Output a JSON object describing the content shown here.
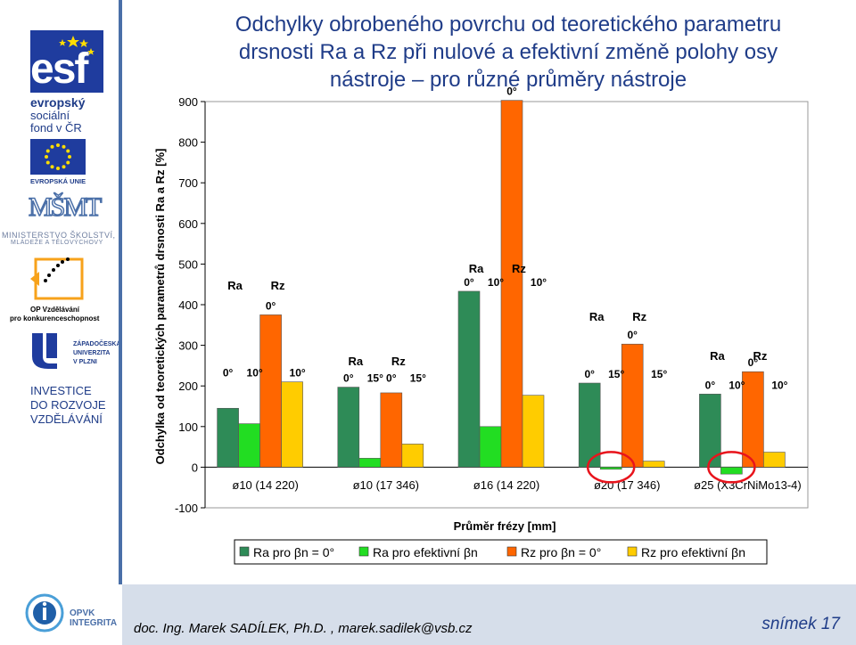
{
  "title_lines": [
    "Odchylky obrobeného povrchu od teoretického parametru",
    "drsnosti Ra a Rz při nulové a efektivní změně polohy osy",
    "nástroje – pro různé průměry nástroje"
  ],
  "sidebar": {
    "esf_logo_text": "esf",
    "esf_lines": [
      "evropský",
      "sociální",
      "fond v ČR"
    ],
    "eu_label": "EVROPSKÁ UNIE",
    "msmt_logo_text": "MŠMT",
    "msmt_lines": [
      "MINISTERSTVO ŠKOLSTVÍ,",
      "MLÁDEŽE A TĚLOVÝCHOVY"
    ],
    "op_lines": [
      "OP Vzdělávání",
      "pro konkurenceschopnost"
    ],
    "zcu_lines": [
      "ZÁPADOČESKÁ",
      "UNIVERZITA",
      "V PLZNI"
    ],
    "investice_lines": [
      "INVESTICE",
      "DO ROZVOJE",
      "VZDĚLÁVÁNÍ"
    ],
    "opvk_lines": [
      "OPVK",
      "INTEGRITA"
    ],
    "colors": {
      "brand_blue": "#1f3c88",
      "eu_blue": "#1f3c9e",
      "eu_star": "#ffdd00",
      "op_orange": "#f7a21b"
    }
  },
  "footer": {
    "author": "doc. Ing. Marek SADÍLEK, Ph.D. , marek.sadilek@vsb.cz",
    "slide": "snímek 17"
  },
  "chart_data": {
    "type": "bar",
    "xlabel": "Průměr frézy [mm]",
    "ylabel": "Odchylka od teoretických parametrů drsnosti Ra a Rz [%]",
    "ylim": [
      -100,
      900
    ],
    "yticks": [
      -100,
      0,
      100,
      200,
      300,
      400,
      500,
      600,
      700,
      800,
      900
    ],
    "categories": [
      "ø10 (14 220)",
      "ø10 (17 346)",
      "ø16 (14 220)",
      "ø20 (17 346)",
      "ø25 (X3CrNiMo13-4)"
    ],
    "series": [
      {
        "name": "Ra pro βn = 0°",
        "color": "#2e8b57",
        "values": [
          145,
          197,
          433,
          207,
          180
        ]
      },
      {
        "name": "Ra pro efektivní   βn",
        "color": "#22dd22",
        "values": [
          107,
          22,
          100,
          -5,
          -17
        ]
      },
      {
        "name": "Rz pro   βn = 0°",
        "color": "#ff6600",
        "values": [
          375,
          183,
          903,
          303,
          235
        ]
      },
      {
        "name": "Rz pro efektivní   βn",
        "color": "#ffcc00",
        "values": [
          210,
          57,
          177,
          15,
          37
        ]
      }
    ],
    "group_annotations": [
      {
        "labels": [
          "Ra",
          "Rz"
        ],
        "angles": [
          "0°",
          "10°",
          "0°",
          "10°"
        ]
      },
      {
        "labels": [
          "Ra",
          "Rz"
        ],
        "angles": [
          "0°",
          "15°",
          "0°",
          "15°"
        ]
      },
      {
        "labels": [
          "Ra",
          "Rz"
        ],
        "angles": [
          "0°",
          "10°",
          "0°",
          "10°"
        ]
      },
      {
        "labels": [
          "Ra",
          "Rz"
        ],
        "angles": [
          "0°",
          "15°",
          "0°",
          "15°"
        ]
      },
      {
        "labels": [
          "Ra",
          "Rz"
        ],
        "angles": [
          "0°",
          "10°",
          "0°",
          "10°"
        ]
      }
    ],
    "highlight_circles_on_categories": [
      3,
      4
    ],
    "highlight_color": "#e8141c",
    "grid": false,
    "legend_position": "bottom"
  }
}
